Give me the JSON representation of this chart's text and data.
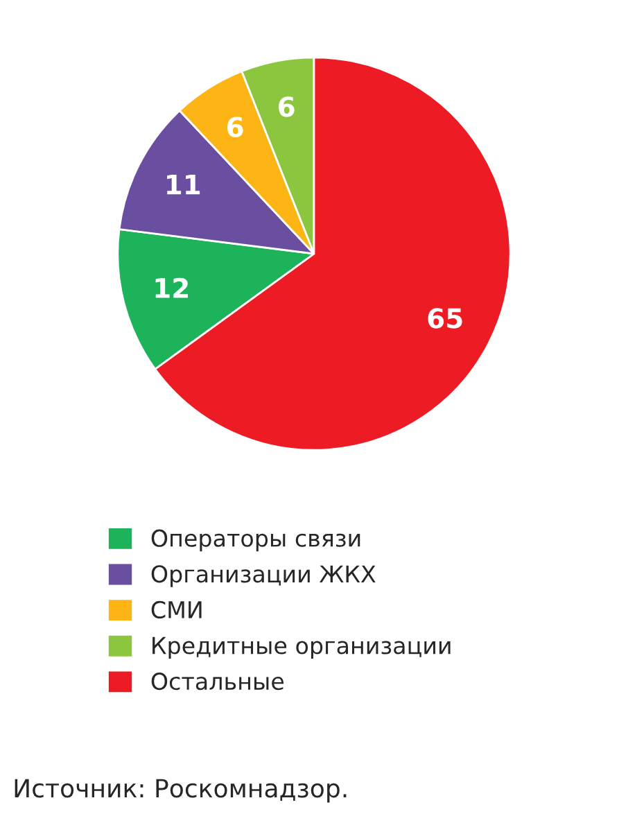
{
  "chart_data": {
    "type": "pie",
    "categories": [
      "Операторы связи",
      "Организации ЖКХ",
      "СМИ",
      "Кредитные организации",
      "Остальные"
    ],
    "values": [
      12,
      11,
      6,
      6,
      65
    ],
    "colors": [
      "#1db35a",
      "#6a4fa0",
      "#fdb515",
      "#8cc63f",
      "#ed1c24"
    ],
    "data_labels": true,
    "legend": "bottom",
    "annotations": [
      "Источник: Роскомнадзор."
    ]
  }
}
